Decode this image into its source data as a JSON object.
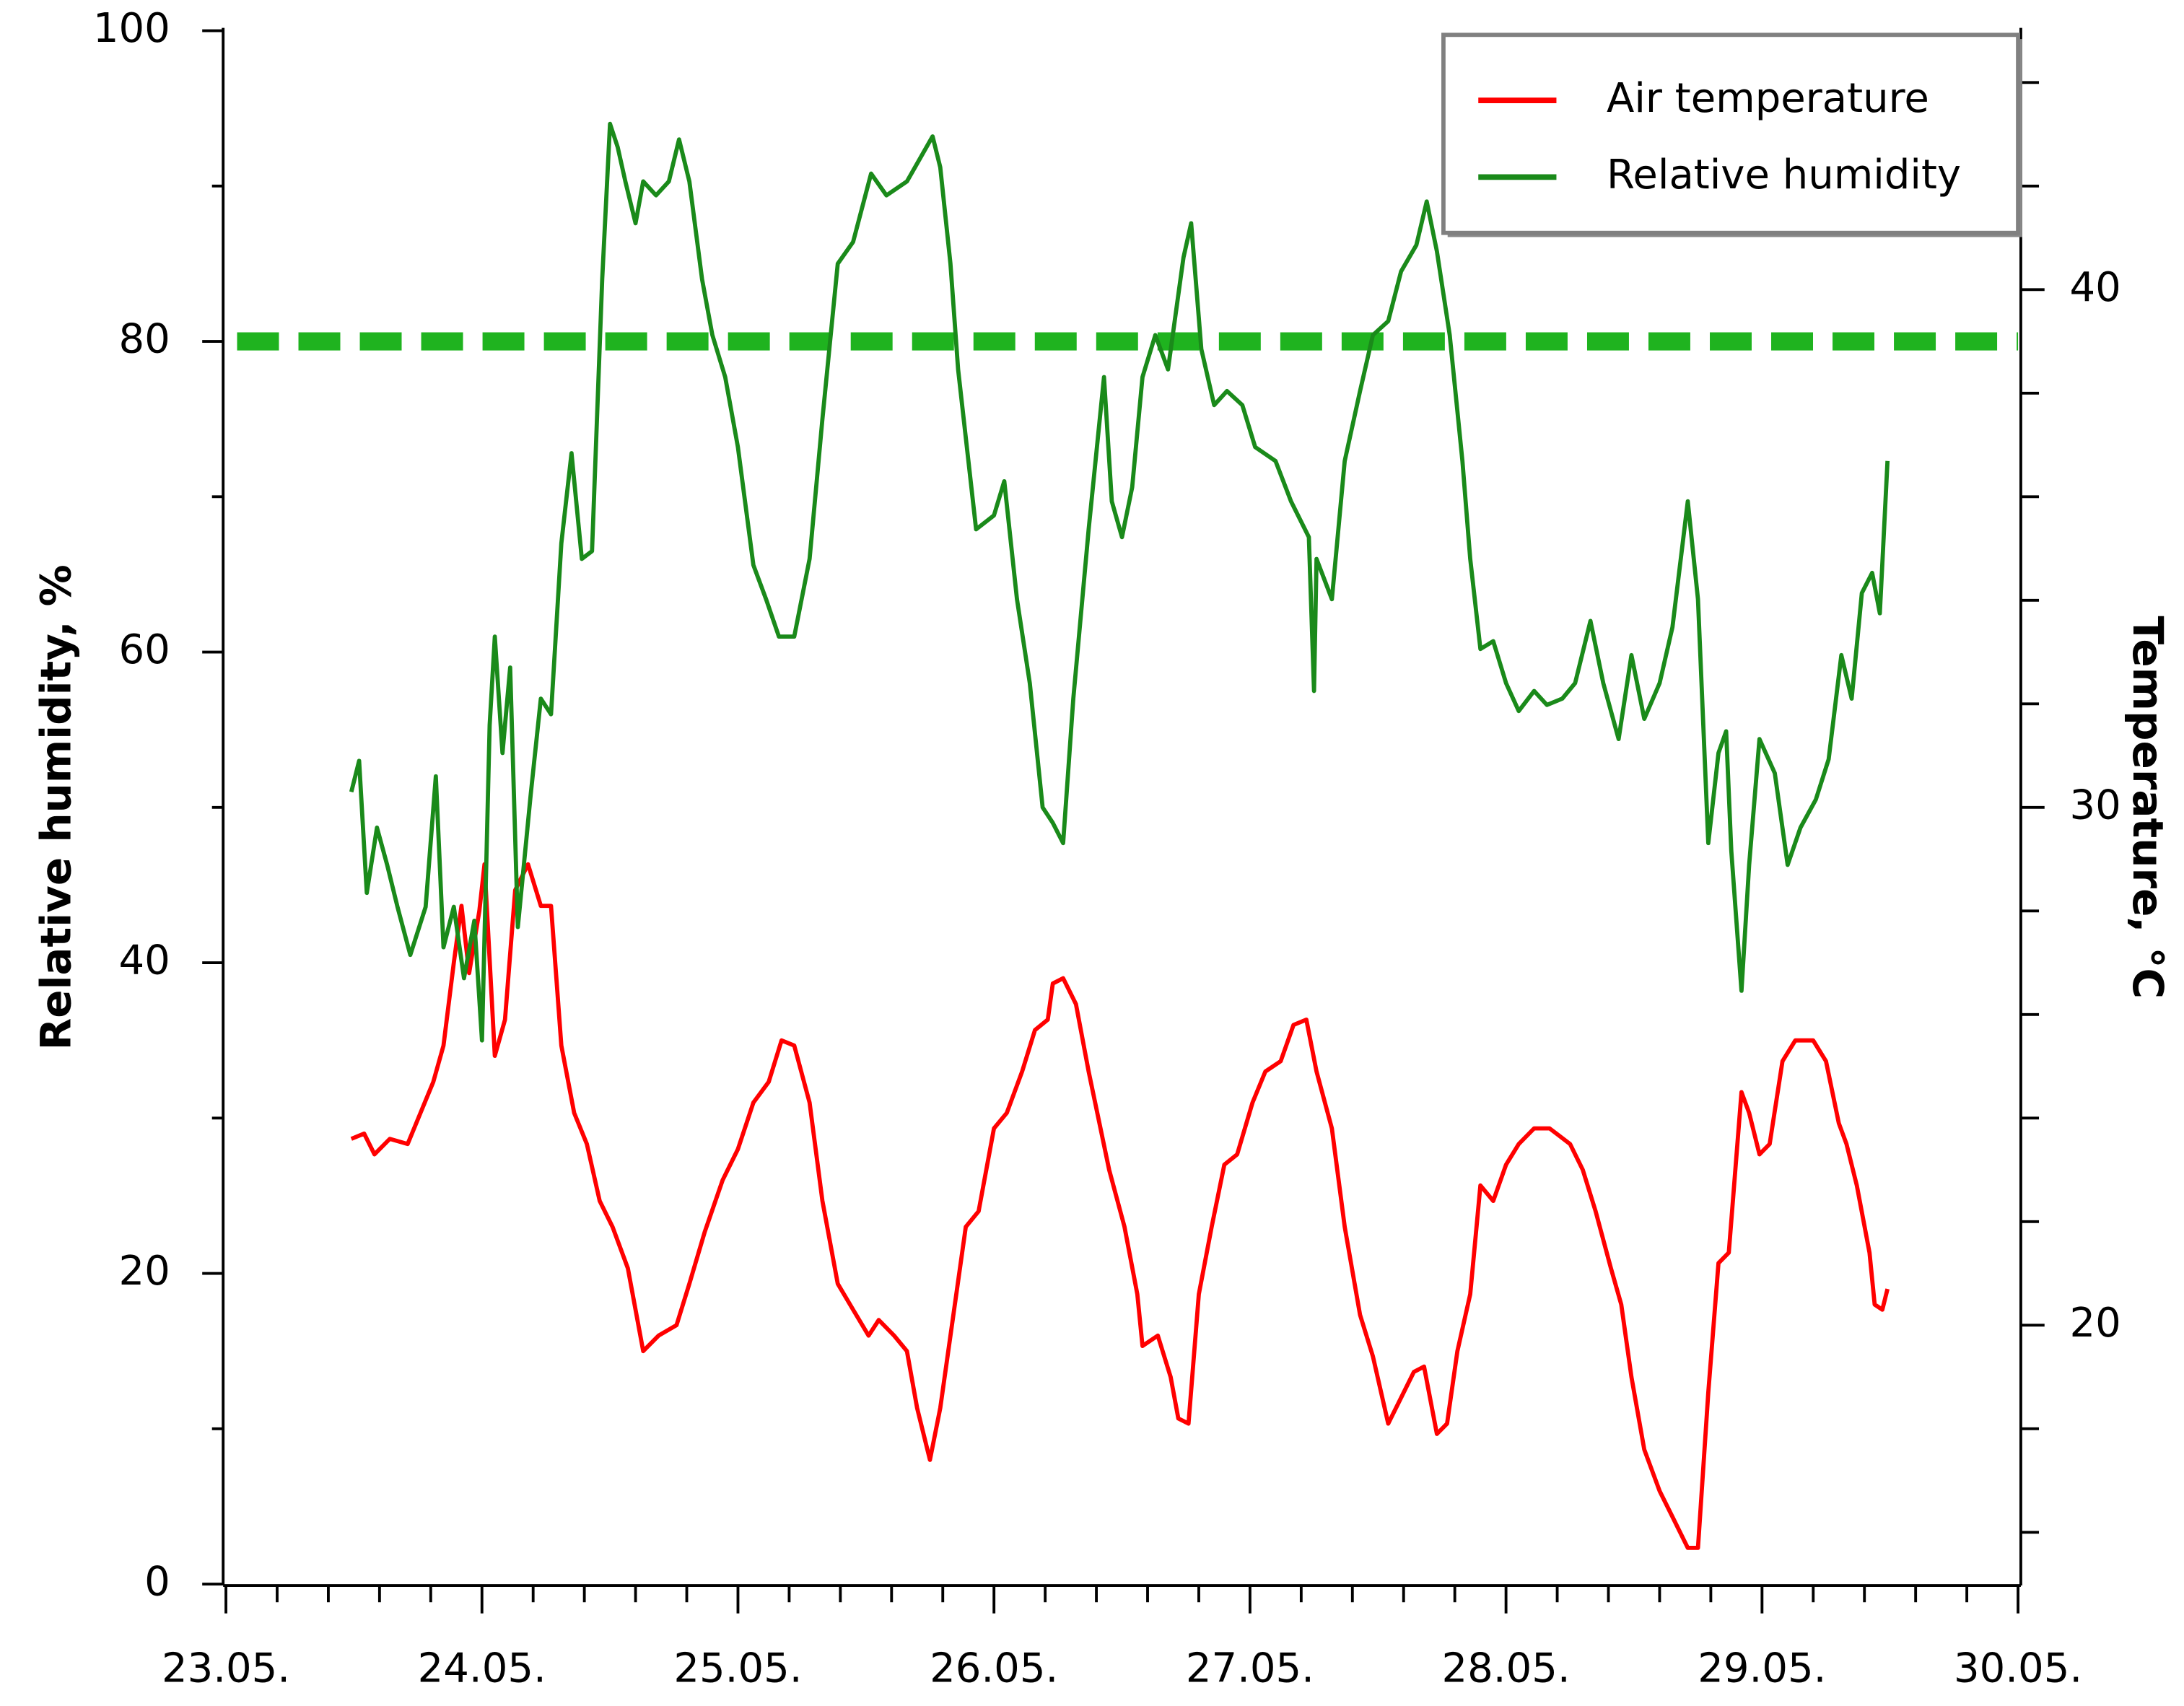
{
  "chart_data": {
    "type": "line",
    "ylabel": "Relative humidity, %",
    "y2label": "Temperature, °C",
    "xlim": [
      23,
      30
    ],
    "xticks": [
      {
        "value": 23,
        "label": "23.05."
      },
      {
        "value": 24,
        "label": "24.05."
      },
      {
        "value": 25,
        "label": "25.05."
      },
      {
        "value": 26,
        "label": "26.05."
      },
      {
        "value": 27,
        "label": "27.05."
      },
      {
        "value": 28,
        "label": "28.05."
      },
      {
        "value": 29,
        "label": "29.05."
      },
      {
        "value": 30,
        "label": "30.05."
      }
    ],
    "xminor_step": 0.2,
    "ylim": [
      0,
      100
    ],
    "yticks": [
      0,
      20,
      40,
      60,
      80,
      100
    ],
    "yminorticks": [
      10,
      30,
      50,
      70,
      90
    ],
    "y2lim": [
      15,
      45
    ],
    "y2ticks": [
      20,
      30,
      40
    ],
    "y2minorticks": [
      16,
      18,
      22,
      24,
      26,
      28,
      32,
      34,
      36,
      38,
      42,
      44
    ],
    "legend": "upper right",
    "threshold": {
      "value": 80,
      "color": "#1fb31f"
    },
    "series": [
      {
        "name": "Air temperature",
        "color": "#ff0000",
        "axis": "y2",
        "x": [
          23.49,
          23.54,
          23.58,
          23.64,
          23.71,
          23.76,
          23.81,
          23.85,
          23.89,
          23.92,
          23.95,
          23.99,
          24.01,
          24.05,
          24.09,
          24.13,
          24.18,
          24.23,
          24.27,
          24.31,
          24.36,
          24.41,
          24.46,
          24.51,
          24.57,
          24.63,
          24.69,
          24.76,
          24.81,
          24.87,
          24.94,
          25.0,
          25.06,
          25.12,
          25.17,
          25.22,
          25.28,
          25.33,
          25.39,
          25.45,
          25.51,
          25.55,
          25.61,
          25.66,
          25.7,
          25.75,
          25.79,
          25.89,
          25.94,
          26.0,
          26.05,
          26.11,
          26.16,
          26.21,
          26.23,
          26.27,
          26.32,
          26.37,
          26.45,
          26.51,
          26.56,
          26.58,
          26.64,
          26.69,
          26.72,
          26.76,
          26.8,
          26.85,
          26.9,
          26.95,
          27.01,
          27.06,
          27.12,
          27.17,
          27.22,
          27.26,
          27.32,
          27.37,
          27.43,
          27.48,
          27.54,
          27.58,
          27.64,
          27.68,
          27.73,
          27.77,
          27.81,
          27.86,
          27.9,
          27.95,
          28.0,
          28.05,
          28.11,
          28.17,
          28.25,
          28.3,
          28.35,
          28.41,
          28.45,
          28.49,
          28.54,
          28.6,
          28.65,
          28.71,
          28.75,
          28.79,
          28.83,
          28.87,
          28.92,
          28.95,
          28.99,
          29.03,
          29.08,
          29.13,
          29.2,
          29.25,
          29.3,
          29.33,
          29.37,
          29.42,
          29.44,
          29.47,
          29.49
        ],
        "values": [
          23.6,
          23.7,
          23.3,
          23.6,
          23.5,
          24.1,
          24.7,
          25.4,
          27.0,
          28.1,
          26.8,
          28.0,
          28.9,
          25.2,
          25.9,
          28.4,
          28.9,
          28.1,
          28.1,
          25.4,
          24.1,
          23.5,
          22.4,
          21.9,
          21.1,
          19.5,
          19.8,
          20.0,
          20.8,
          21.8,
          22.8,
          23.4,
          24.3,
          24.7,
          25.5,
          25.4,
          24.3,
          22.4,
          20.8,
          20.3,
          19.8,
          20.1,
          19.8,
          19.5,
          18.4,
          17.4,
          18.4,
          21.9,
          22.2,
          23.8,
          24.1,
          24.9,
          25.7,
          25.9,
          26.6,
          26.7,
          26.2,
          24.9,
          23.0,
          21.9,
          20.6,
          19.6,
          19.8,
          19.0,
          18.2,
          18.1,
          20.6,
          21.9,
          23.1,
          23.3,
          24.3,
          24.9,
          25.1,
          25.8,
          25.9,
          24.9,
          23.8,
          21.9,
          20.2,
          19.4,
          18.1,
          18.5,
          19.1,
          19.2,
          17.9,
          18.1,
          19.5,
          20.6,
          22.7,
          22.4,
          23.1,
          23.5,
          23.8,
          23.8,
          23.5,
          23.0,
          22.2,
          21.1,
          20.4,
          19.0,
          17.6,
          16.8,
          16.3,
          15.7,
          15.7,
          18.7,
          21.2,
          21.4,
          24.5,
          24.1,
          23.3,
          23.5,
          25.1,
          25.5,
          25.5,
          25.1,
          23.9,
          23.5,
          22.7,
          21.4,
          20.4,
          20.3,
          20.7
        ]
      },
      {
        "name": "Relative humidity",
        "color": "#1a8a1a",
        "x": [
          23.49,
          23.52,
          23.55,
          23.59,
          23.63,
          23.67,
          23.72,
          23.78,
          23.82,
          23.85,
          23.89,
          23.93,
          23.97,
          24.0,
          24.03,
          24.05,
          24.08,
          24.11,
          24.14,
          24.19,
          24.23,
          24.27,
          24.31,
          24.35,
          24.39,
          24.43,
          24.47,
          24.5,
          24.53,
          24.56,
          24.6,
          24.63,
          24.68,
          24.73,
          24.77,
          24.81,
          24.86,
          24.9,
          24.95,
          25.0,
          25.06,
          25.11,
          25.16,
          25.22,
          25.28,
          25.33,
          25.39,
          25.45,
          25.52,
          25.58,
          25.66,
          25.76,
          25.79,
          25.83,
          25.86,
          25.93,
          26.0,
          26.04,
          26.09,
          26.14,
          26.19,
          26.23,
          26.27,
          26.31,
          26.37,
          26.43,
          26.46,
          26.5,
          26.54,
          26.58,
          26.63,
          26.68,
          26.74,
          26.77,
          26.81,
          26.86,
          26.91,
          26.97,
          27.02,
          27.1,
          27.16,
          27.23,
          27.25,
          27.26,
          27.32,
          27.37,
          27.43,
          27.48,
          27.54,
          27.59,
          27.65,
          27.69,
          27.73,
          27.78,
          27.83,
          27.86,
          27.9,
          27.95,
          28.0,
          28.05,
          28.11,
          28.16,
          28.22,
          28.27,
          28.33,
          28.38,
          28.44,
          28.49,
          28.54,
          28.6,
          28.65,
          28.71,
          28.75,
          28.79,
          28.83,
          28.86,
          28.88,
          28.92,
          28.95,
          28.99,
          29.05,
          29.1,
          29.15,
          29.21,
          29.26,
          29.31,
          29.35,
          29.39,
          29.43,
          29.46,
          29.49
        ],
        "values": [
          51,
          53,
          44.5,
          48.7,
          46.3,
          43.6,
          40.5,
          43.6,
          52,
          41,
          43.6,
          39,
          42.7,
          35,
          55.3,
          61,
          53.5,
          59,
          42.3,
          50.8,
          57,
          56,
          67,
          72.8,
          66,
          66.5,
          84,
          94,
          92.5,
          90.3,
          87.6,
          90.3,
          89.4,
          90.3,
          93,
          90.3,
          84,
          80.4,
          77.7,
          73.2,
          65.6,
          63.4,
          61,
          61,
          66,
          75,
          85,
          86.4,
          90.8,
          89.4,
          90.3,
          93.2,
          91.2,
          85,
          78.2,
          67.9,
          68.8,
          71,
          63.4,
          58,
          50,
          49,
          47.7,
          57,
          67.9,
          77.7,
          69.7,
          67.4,
          70.6,
          77.7,
          80.4,
          78.2,
          85.4,
          87.6,
          79.5,
          75.9,
          76.8,
          75.9,
          73.2,
          72.3,
          69.7,
          67.4,
          57.5,
          66,
          63.4,
          72.3,
          76.8,
          80.4,
          81.3,
          84.5,
          86.2,
          89,
          85.8,
          80.4,
          72.3,
          66,
          60.2,
          60.7,
          58,
          56.2,
          57.5,
          56.6,
          57,
          58,
          62,
          58,
          54.4,
          59.8,
          55.7,
          58,
          61.6,
          69.7,
          63.4,
          47.7,
          53.5,
          54.9,
          47.2,
          38.2,
          46.3,
          54.4,
          52.2,
          46.3,
          48.7,
          50.5,
          53.1,
          59.8,
          57,
          63.8,
          65.1,
          62.5,
          72.3
        ]
      }
    ]
  }
}
